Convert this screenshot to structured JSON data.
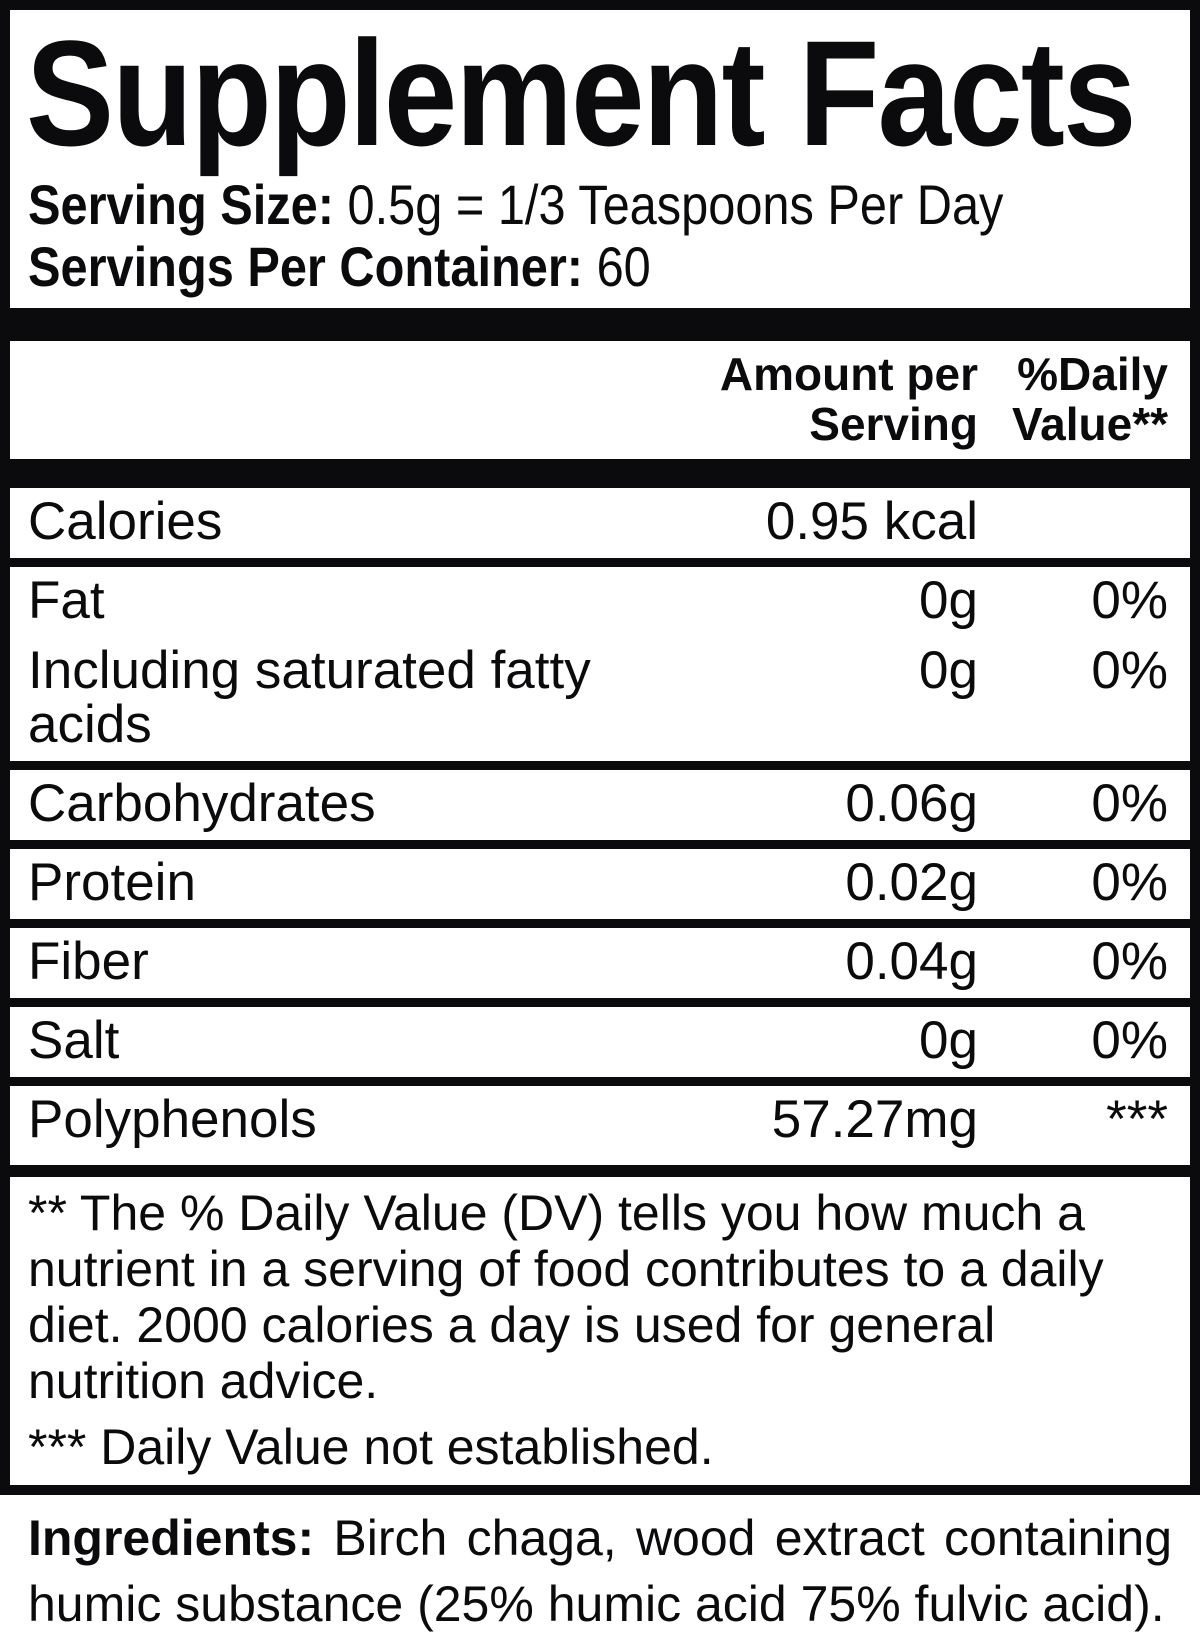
{
  "title": "Supplement Facts",
  "serving": {
    "size_label": "Serving Size:",
    "size_value": " 0.5g = 1/3 Teaspoons Per Day",
    "per_container_label": "Servings Per Container:",
    "per_container_value": " 60"
  },
  "columns": {
    "amount_line1": "Amount per",
    "amount_line2": "Serving",
    "dv_line1": "%Daily",
    "dv_line2": "Value**"
  },
  "nutrients": [
    {
      "rows": [
        {
          "name": "Calories",
          "amount": "0.95 kcal",
          "dv": ""
        }
      ]
    },
    {
      "rows": [
        {
          "name": "Fat",
          "amount": "0g",
          "dv": "0%"
        },
        {
          "name": "Including saturated fatty acids",
          "amount": "0g",
          "dv": "0%"
        }
      ]
    },
    {
      "rows": [
        {
          "name": "Carbohydrates",
          "amount": "0.06g",
          "dv": "0%"
        }
      ]
    },
    {
      "rows": [
        {
          "name": "Protein",
          "amount": "0.02g",
          "dv": "0%"
        }
      ]
    },
    {
      "rows": [
        {
          "name": "Fiber",
          "amount": "0.04g",
          "dv": "0%"
        }
      ]
    },
    {
      "rows": [
        {
          "name": "Salt",
          "amount": "0g",
          "dv": "0%"
        }
      ]
    },
    {
      "rows": [
        {
          "name": "Polyphenols",
          "amount": "57.27mg",
          "dv": "***"
        }
      ]
    }
  ],
  "footnotes": {
    "dv_note": "** The % Daily Value (DV) tells you how much a nutrient in a serving of food contributes to a daily diet. 2000 calories a day is used for general nutrition advice.",
    "not_established_note": "*** Daily Value not established."
  },
  "ingredients": {
    "label": "Ingredients:",
    "value": " Birch chaga, wood extract containing humic substance (25% humic acid 75% fulvic acid)."
  },
  "colors": {
    "ink": "#0b0b0d",
    "background": "#ffffff"
  }
}
